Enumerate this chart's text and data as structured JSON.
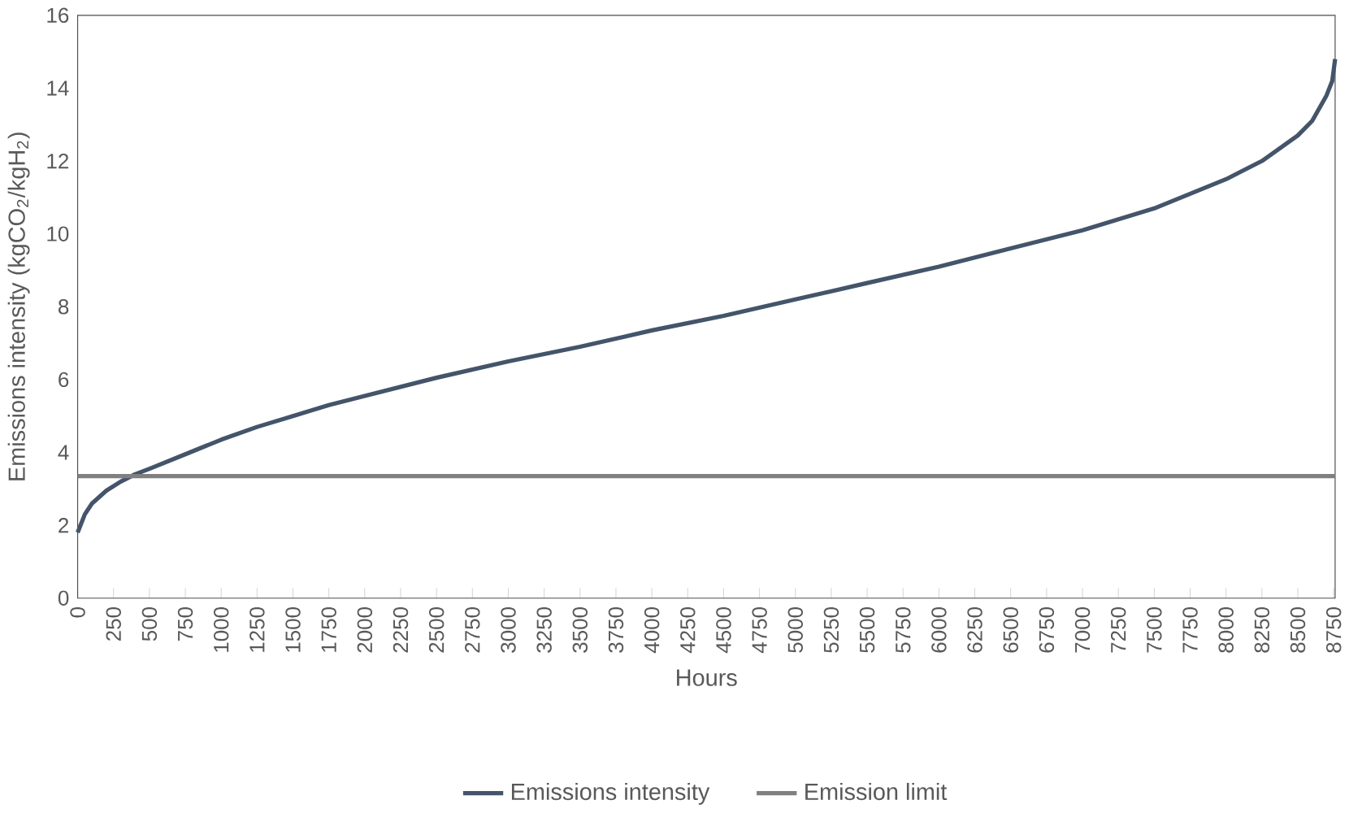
{
  "chart_data": {
    "type": "line",
    "xlabel": "Hours",
    "ylabel": "Emissions intensity (kgCO$_{2}$/kgH$_{2}$)",
    "xlim": [
      0,
      8760
    ],
    "ylim": [
      0,
      16
    ],
    "xticks": [
      0,
      250,
      500,
      750,
      1000,
      1250,
      1500,
      1750,
      2000,
      2250,
      2500,
      2750,
      3000,
      3250,
      3500,
      3750,
      4000,
      4250,
      4500,
      4750,
      5000,
      5250,
      5500,
      5750,
      6000,
      6250,
      6500,
      6750,
      7000,
      7250,
      7500,
      7750,
      8000,
      8250,
      8500,
      8750
    ],
    "yticks": [
      0,
      2,
      4,
      6,
      8,
      10,
      12,
      14,
      16
    ],
    "legend": "bottom",
    "grid": false,
    "series": [
      {
        "name": "Emissions intensity",
        "color": "#44546a",
        "x": [
          0,
          50,
          100,
          200,
          300,
          400,
          500,
          750,
          1000,
          1250,
          1500,
          1750,
          2000,
          2500,
          3000,
          3500,
          4000,
          4500,
          5000,
          5500,
          6000,
          6500,
          7000,
          7500,
          8000,
          8250,
          8500,
          8600,
          8700,
          8740,
          8760
        ],
        "values": [
          1.8,
          2.3,
          2.6,
          2.95,
          3.2,
          3.4,
          3.55,
          3.95,
          4.35,
          4.7,
          5.0,
          5.3,
          5.55,
          6.05,
          6.5,
          6.9,
          7.35,
          7.75,
          8.2,
          8.65,
          9.1,
          9.6,
          10.1,
          10.7,
          11.5,
          12.0,
          12.7,
          13.1,
          13.8,
          14.2,
          14.8
        ]
      },
      {
        "name": "Emission limit",
        "color": "#808080",
        "x": [
          0,
          8760
        ],
        "values": [
          3.35,
          3.35
        ]
      }
    ]
  }
}
